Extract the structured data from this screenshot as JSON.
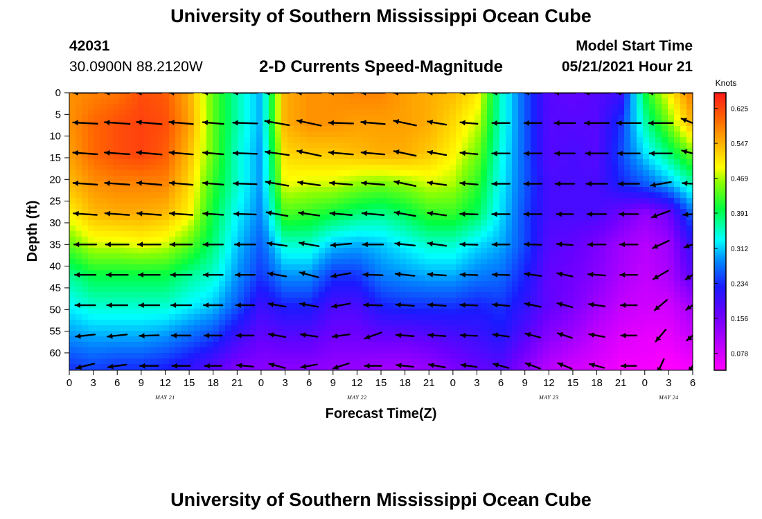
{
  "header": {
    "title": "University of Southern Mississippi Ocean Cube",
    "station_id": "42031",
    "station_coords": "30.0900N  88.2120W",
    "subtitle": "2-D Currents Speed-Magnitude",
    "start_label": "Model Start Time",
    "start_value": "05/21/2021 Hour 21"
  },
  "footer": {
    "title": "University of Southern Mississippi Ocean Cube"
  },
  "chart_data": {
    "type": "heatmap",
    "title": "2-D Currents Speed-Magnitude",
    "xlabel": "Forecast Time(Z)",
    "ylabel": "Depth (ft)",
    "x_hours_range": [
      0,
      78
    ],
    "x_tick_hours": [
      0,
      3,
      6,
      9,
      12,
      15,
      18,
      21,
      24,
      27,
      30,
      33,
      36,
      39,
      42,
      45,
      48,
      51,
      54,
      57,
      60,
      63,
      66,
      69,
      72,
      75,
      78
    ],
    "x_tick_labels": [
      "0",
      "3",
      "6",
      "9",
      "12",
      "15",
      "18",
      "21",
      "0",
      "3",
      "6",
      "9",
      "12",
      "15",
      "18",
      "21",
      "0",
      "3",
      "6",
      "9",
      "12",
      "15",
      "18",
      "21",
      "0",
      "3",
      "6"
    ],
    "day_labels": [
      {
        "text": "MAY 21",
        "hour": 12
      },
      {
        "text": "MAY 22",
        "hour": 36
      },
      {
        "text": "MAY 23",
        "hour": 60
      },
      {
        "text": "MAY 24",
        "hour": 75
      }
    ],
    "ylim": [
      0,
      64
    ],
    "y_ticks": [
      0,
      5,
      10,
      15,
      20,
      25,
      30,
      35,
      40,
      45,
      50,
      55,
      60
    ],
    "colorbar": {
      "unit": "Knots",
      "range": [
        0.04,
        0.66
      ],
      "ticks": [
        0.625,
        0.547,
        0.469,
        0.391,
        0.312,
        0.234,
        0.156,
        0.078
      ],
      "tick_labels": [
        "0.625",
        "0.547",
        "0.469",
        "0.391",
        "0.312",
        "0.234",
        "0.156",
        "0.078"
      ]
    },
    "depth_levels_ft": [
      0,
      7,
      14,
      21,
      28,
      35,
      42,
      49,
      56,
      63
    ],
    "grid_hours": [
      0,
      3,
      6,
      9,
      12,
      15,
      18,
      21,
      24,
      27,
      30,
      33,
      36,
      39,
      42,
      45,
      48,
      51,
      54,
      57,
      60,
      63,
      66,
      69,
      72,
      75,
      78
    ],
    "speed_knots": [
      [
        0.57,
        0.58,
        0.59,
        0.62,
        0.61,
        0.55,
        0.44,
        0.36,
        0.3,
        0.55,
        0.57,
        0.57,
        0.58,
        0.58,
        0.56,
        0.55,
        0.54,
        0.51,
        0.35,
        0.26,
        0.18,
        0.17,
        0.18,
        0.2,
        0.4,
        0.5,
        0.59
      ],
      [
        0.57,
        0.6,
        0.62,
        0.63,
        0.62,
        0.56,
        0.44,
        0.36,
        0.3,
        0.55,
        0.57,
        0.57,
        0.56,
        0.56,
        0.56,
        0.55,
        0.52,
        0.48,
        0.35,
        0.26,
        0.18,
        0.18,
        0.18,
        0.24,
        0.36,
        0.45,
        0.55
      ],
      [
        0.56,
        0.6,
        0.62,
        0.63,
        0.61,
        0.54,
        0.44,
        0.35,
        0.29,
        0.52,
        0.53,
        0.53,
        0.54,
        0.55,
        0.55,
        0.53,
        0.5,
        0.45,
        0.34,
        0.26,
        0.18,
        0.19,
        0.18,
        0.25,
        0.32,
        0.38,
        0.45
      ],
      [
        0.54,
        0.57,
        0.58,
        0.58,
        0.58,
        0.52,
        0.42,
        0.35,
        0.29,
        0.49,
        0.48,
        0.48,
        0.46,
        0.45,
        0.46,
        0.48,
        0.47,
        0.42,
        0.33,
        0.26,
        0.19,
        0.19,
        0.19,
        0.23,
        0.26,
        0.3,
        0.36
      ],
      [
        0.5,
        0.54,
        0.55,
        0.55,
        0.54,
        0.5,
        0.4,
        0.33,
        0.28,
        0.43,
        0.42,
        0.4,
        0.38,
        0.37,
        0.39,
        0.42,
        0.42,
        0.39,
        0.32,
        0.25,
        0.19,
        0.19,
        0.19,
        0.16,
        0.13,
        0.16,
        0.27
      ],
      [
        0.44,
        0.48,
        0.48,
        0.49,
        0.48,
        0.44,
        0.38,
        0.31,
        0.26,
        0.35,
        0.35,
        0.31,
        0.3,
        0.31,
        0.33,
        0.35,
        0.35,
        0.32,
        0.3,
        0.25,
        0.18,
        0.17,
        0.15,
        0.12,
        0.1,
        0.12,
        0.21
      ],
      [
        0.37,
        0.4,
        0.4,
        0.4,
        0.4,
        0.37,
        0.35,
        0.29,
        0.24,
        0.29,
        0.29,
        0.24,
        0.24,
        0.28,
        0.29,
        0.3,
        0.3,
        0.28,
        0.27,
        0.23,
        0.17,
        0.16,
        0.14,
        0.11,
        0.09,
        0.11,
        0.18
      ],
      [
        0.33,
        0.35,
        0.35,
        0.35,
        0.35,
        0.33,
        0.31,
        0.26,
        0.2,
        0.23,
        0.23,
        0.19,
        0.19,
        0.23,
        0.24,
        0.24,
        0.24,
        0.23,
        0.24,
        0.21,
        0.17,
        0.15,
        0.12,
        0.09,
        0.08,
        0.08,
        0.12
      ],
      [
        0.29,
        0.3,
        0.3,
        0.3,
        0.29,
        0.27,
        0.25,
        0.2,
        0.17,
        0.18,
        0.18,
        0.16,
        0.16,
        0.17,
        0.17,
        0.18,
        0.19,
        0.2,
        0.22,
        0.18,
        0.14,
        0.12,
        0.09,
        0.07,
        0.06,
        0.06,
        0.09
      ],
      [
        0.24,
        0.25,
        0.24,
        0.24,
        0.23,
        0.21,
        0.18,
        0.15,
        0.14,
        0.14,
        0.14,
        0.13,
        0.13,
        0.12,
        0.12,
        0.13,
        0.15,
        0.17,
        0.18,
        0.14,
        0.1,
        0.08,
        0.07,
        0.05,
        0.05,
        0.04,
        0.05
      ]
    ],
    "vector_hours": [
      2,
      6,
      10,
      14,
      18,
      22,
      26,
      30,
      34,
      38,
      42,
      46,
      50,
      54,
      58,
      62,
      66,
      70,
      74,
      78
    ],
    "vector_depths_ft": [
      0,
      7,
      14,
      21,
      28,
      35,
      42,
      49,
      56,
      63
    ],
    "vector_direction_deg": [
      [
        180,
        180,
        180,
        180,
        180,
        180,
        180,
        180,
        180,
        180,
        180,
        180,
        180,
        180,
        180,
        180,
        180,
        180,
        180,
        180
      ],
      [
        177,
        176,
        175,
        175,
        175,
        178,
        170,
        168,
        178,
        175,
        168,
        170,
        175,
        180,
        180,
        180,
        180,
        180,
        180,
        158
      ],
      [
        176,
        176,
        175,
        175,
        175,
        178,
        172,
        168,
        175,
        175,
        168,
        170,
        175,
        180,
        180,
        180,
        180,
        180,
        180,
        165
      ],
      [
        176,
        176,
        175,
        175,
        175,
        178,
        170,
        172,
        175,
        175,
        168,
        172,
        175,
        180,
        180,
        180,
        180,
        180,
        190,
        176
      ],
      [
        176,
        176,
        176,
        176,
        176,
        178,
        170,
        172,
        175,
        175,
        170,
        172,
        178,
        180,
        180,
        180,
        180,
        180,
        200,
        184
      ],
      [
        180,
        180,
        180,
        180,
        180,
        180,
        172,
        170,
        185,
        180,
        174,
        172,
        178,
        180,
        178,
        176,
        180,
        180,
        205,
        200
      ],
      [
        180,
        180,
        180,
        180,
        180,
        180,
        170,
        165,
        190,
        178,
        174,
        176,
        178,
        178,
        172,
        168,
        176,
        180,
        210,
        213
      ],
      [
        180,
        180,
        180,
        180,
        180,
        180,
        170,
        170,
        190,
        178,
        176,
        176,
        178,
        175,
        168,
        165,
        172,
        180,
        220,
        215
      ],
      [
        186,
        186,
        182,
        180,
        180,
        180,
        170,
        172,
        188,
        200,
        176,
        176,
        178,
        172,
        165,
        162,
        170,
        180,
        230,
        220
      ],
      [
        194,
        188,
        180,
        180,
        180,
        175,
        165,
        190,
        198,
        180,
        174,
        170,
        172,
        165,
        160,
        158,
        165,
        180,
        245,
        235
      ]
    ],
    "vector_speed_knots": [
      [
        0.57,
        0.62,
        0.61,
        0.55,
        0.36,
        0.55,
        0.57,
        0.58,
        0.56,
        0.54,
        0.51,
        0.26,
        0.18,
        0.18,
        0.17,
        0.4,
        0.59,
        0.59,
        0.59,
        0.59
      ],
      [
        0.57,
        0.62,
        0.62,
        0.53,
        0.36,
        0.55,
        0.57,
        0.56,
        0.56,
        0.53,
        0.48,
        0.26,
        0.18,
        0.18,
        0.17,
        0.36,
        0.55,
        0.55,
        0.55,
        0.55
      ],
      [
        0.56,
        0.62,
        0.61,
        0.52,
        0.35,
        0.52,
        0.53,
        0.55,
        0.55,
        0.5,
        0.45,
        0.26,
        0.18,
        0.19,
        0.18,
        0.32,
        0.45,
        0.45,
        0.45,
        0.45
      ],
      [
        0.54,
        0.58,
        0.58,
        0.5,
        0.35,
        0.49,
        0.48,
        0.45,
        0.46,
        0.47,
        0.42,
        0.26,
        0.19,
        0.19,
        0.19,
        0.26,
        0.36,
        0.36,
        0.36,
        0.36
      ],
      [
        0.5,
        0.55,
        0.54,
        0.48,
        0.33,
        0.43,
        0.4,
        0.37,
        0.42,
        0.42,
        0.39,
        0.25,
        0.19,
        0.19,
        0.19,
        0.13,
        0.27,
        0.27,
        0.27,
        0.27
      ],
      [
        0.44,
        0.48,
        0.48,
        0.43,
        0.31,
        0.35,
        0.31,
        0.31,
        0.35,
        0.35,
        0.32,
        0.25,
        0.18,
        0.17,
        0.15,
        0.1,
        0.21,
        0.21,
        0.21,
        0.21
      ],
      [
        0.37,
        0.4,
        0.4,
        0.37,
        0.29,
        0.29,
        0.24,
        0.28,
        0.3,
        0.3,
        0.28,
        0.23,
        0.17,
        0.16,
        0.14,
        0.09,
        0.18,
        0.18,
        0.18,
        0.18
      ],
      [
        0.33,
        0.35,
        0.35,
        0.33,
        0.26,
        0.23,
        0.19,
        0.23,
        0.24,
        0.24,
        0.23,
        0.21,
        0.17,
        0.15,
        0.12,
        0.08,
        0.12,
        0.12,
        0.12,
        0.12
      ],
      [
        0.29,
        0.3,
        0.29,
        0.27,
        0.2,
        0.18,
        0.16,
        0.17,
        0.18,
        0.19,
        0.2,
        0.18,
        0.14,
        0.12,
        0.09,
        0.06,
        0.09,
        0.09,
        0.09,
        0.09
      ],
      [
        0.24,
        0.24,
        0.23,
        0.21,
        0.15,
        0.14,
        0.13,
        0.12,
        0.13,
        0.15,
        0.17,
        0.14,
        0.1,
        0.08,
        0.07,
        0.05,
        0.05,
        0.05,
        0.05,
        0.05
      ]
    ]
  },
  "colors": {
    "axis": "#000000",
    "arrow": "#000000",
    "colorbar_border": "#000000"
  }
}
